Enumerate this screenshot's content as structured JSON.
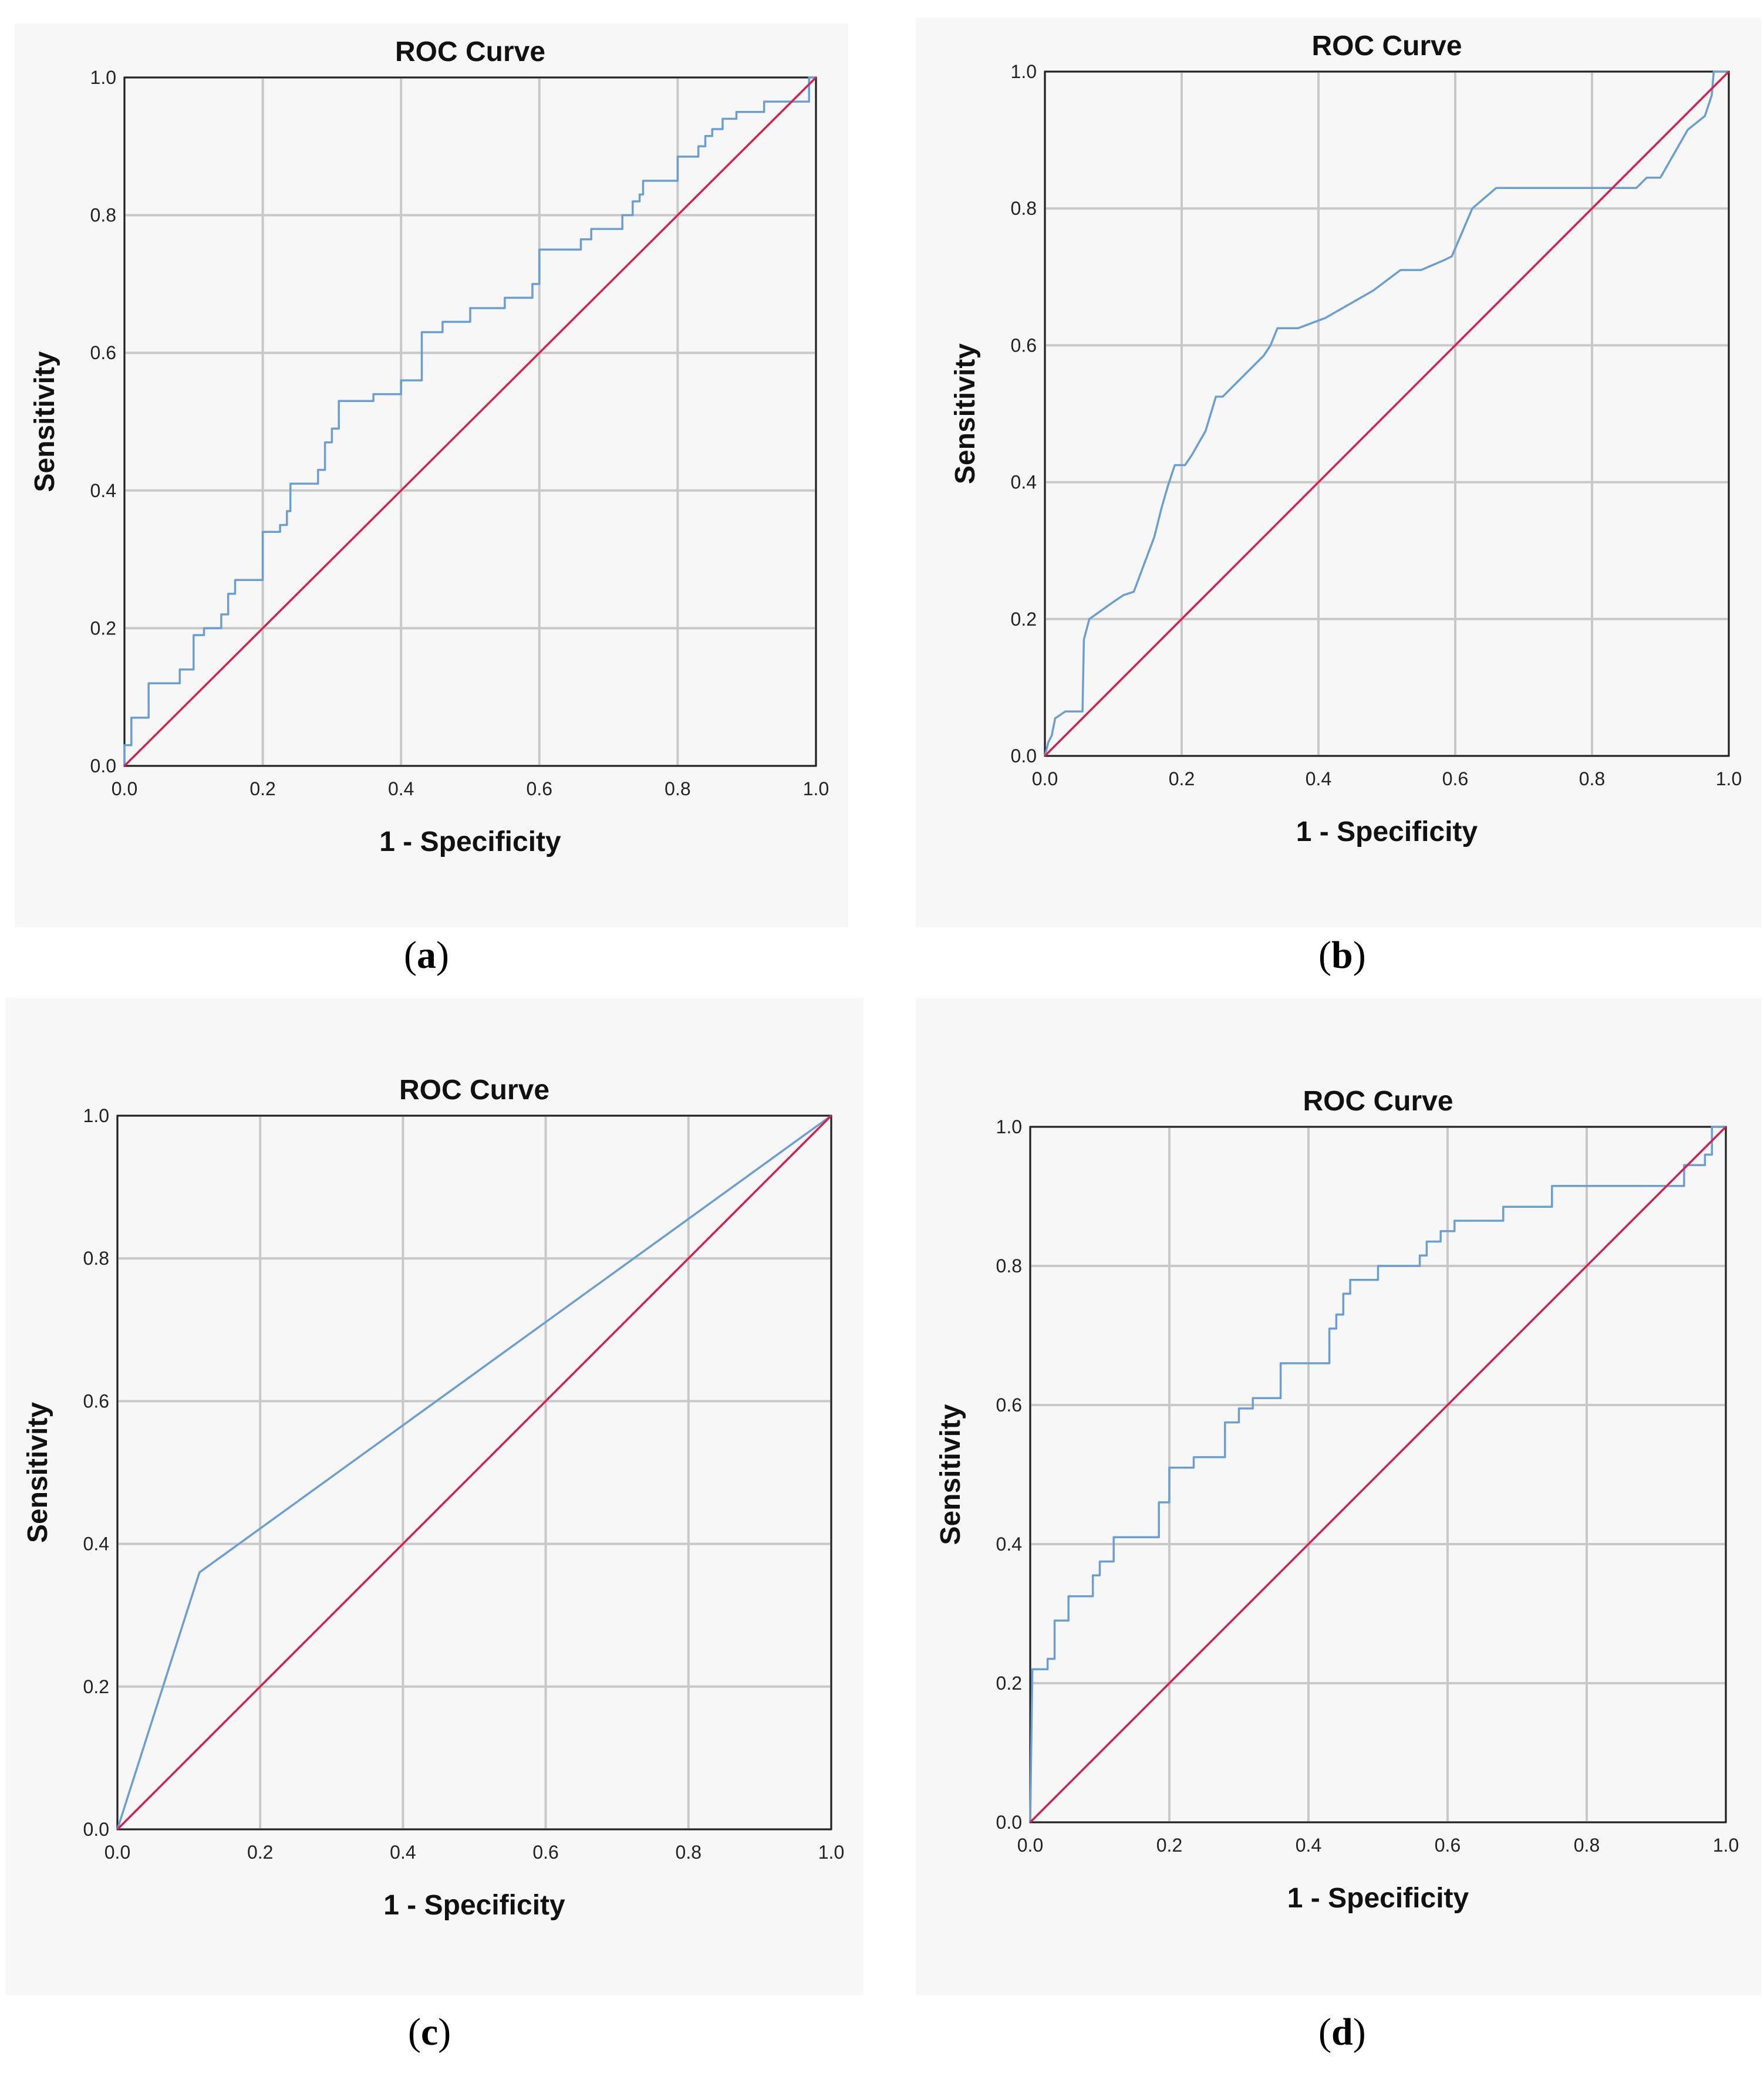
{
  "panels": [
    {
      "label_open": "(",
      "label_letter": "a",
      "label_close": ")"
    },
    {
      "label_open": "(",
      "label_letter": "b",
      "label_close": ")"
    },
    {
      "label_open": "(",
      "label_letter": "c",
      "label_close": ")"
    },
    {
      "label_open": "(",
      "label_letter": "d",
      "label_close": ")"
    }
  ],
  "chart_data": [
    {
      "type": "line",
      "title": "ROC Curve",
      "xlabel": "1 - Specificity",
      "ylabel": "Sensitivity",
      "xlim": [
        0,
        1
      ],
      "ylim": [
        0,
        1
      ],
      "xticks": [
        "0.0",
        "0.2",
        "0.4",
        "0.6",
        "0.8",
        "1.0"
      ],
      "yticks": [
        "0.0",
        "0.2",
        "0.4",
        "0.6",
        "0.8",
        "1.0"
      ],
      "grid": true,
      "colors": {
        "curve": "#6b9ed2",
        "reference": "#d6214c"
      },
      "series": [
        {
          "name": "ROC",
          "points": [
            [
              0,
              0
            ],
            [
              0,
              0.03
            ],
            [
              0.01,
              0.03
            ],
            [
              0.01,
              0.07
            ],
            [
              0.035,
              0.07
            ],
            [
              0.035,
              0.12
            ],
            [
              0.08,
              0.12
            ],
            [
              0.08,
              0.14
            ],
            [
              0.1,
              0.14
            ],
            [
              0.1,
              0.19
            ],
            [
              0.115,
              0.19
            ],
            [
              0.115,
              0.2
            ],
            [
              0.14,
              0.2
            ],
            [
              0.14,
              0.22
            ],
            [
              0.15,
              0.22
            ],
            [
              0.15,
              0.25
            ],
            [
              0.16,
              0.25
            ],
            [
              0.16,
              0.27
            ],
            [
              0.2,
              0.27
            ],
            [
              0.2,
              0.34
            ],
            [
              0.225,
              0.34
            ],
            [
              0.225,
              0.35
            ],
            [
              0.235,
              0.35
            ],
            [
              0.235,
              0.37
            ],
            [
              0.24,
              0.37
            ],
            [
              0.24,
              0.41
            ],
            [
              0.28,
              0.41
            ],
            [
              0.28,
              0.43
            ],
            [
              0.29,
              0.43
            ],
            [
              0.29,
              0.47
            ],
            [
              0.3,
              0.47
            ],
            [
              0.3,
              0.49
            ],
            [
              0.31,
              0.49
            ],
            [
              0.31,
              0.53
            ],
            [
              0.36,
              0.53
            ],
            [
              0.36,
              0.54
            ],
            [
              0.4,
              0.54
            ],
            [
              0.4,
              0.56
            ],
            [
              0.43,
              0.56
            ],
            [
              0.43,
              0.63
            ],
            [
              0.46,
              0.63
            ],
            [
              0.46,
              0.645
            ],
            [
              0.5,
              0.645
            ],
            [
              0.5,
              0.665
            ],
            [
              0.55,
              0.665
            ],
            [
              0.55,
              0.68
            ],
            [
              0.59,
              0.68
            ],
            [
              0.59,
              0.7
            ],
            [
              0.6,
              0.7
            ],
            [
              0.6,
              0.75
            ],
            [
              0.66,
              0.75
            ],
            [
              0.66,
              0.765
            ],
            [
              0.675,
              0.765
            ],
            [
              0.675,
              0.78
            ],
            [
              0.72,
              0.78
            ],
            [
              0.72,
              0.8
            ],
            [
              0.735,
              0.8
            ],
            [
              0.735,
              0.82
            ],
            [
              0.745,
              0.82
            ],
            [
              0.745,
              0.83
            ],
            [
              0.75,
              0.83
            ],
            [
              0.75,
              0.85
            ],
            [
              0.8,
              0.85
            ],
            [
              0.8,
              0.885
            ],
            [
              0.83,
              0.885
            ],
            [
              0.83,
              0.9
            ],
            [
              0.84,
              0.9
            ],
            [
              0.84,
              0.915
            ],
            [
              0.85,
              0.915
            ],
            [
              0.85,
              0.925
            ],
            [
              0.865,
              0.925
            ],
            [
              0.865,
              0.94
            ],
            [
              0.885,
              0.94
            ],
            [
              0.885,
              0.95
            ],
            [
              0.925,
              0.95
            ],
            [
              0.925,
              0.965
            ],
            [
              0.99,
              0.965
            ],
            [
              0.99,
              1.0
            ],
            [
              1,
              1
            ]
          ]
        },
        {
          "name": "Reference Line",
          "points": [
            [
              0,
              0
            ],
            [
              1,
              1
            ]
          ]
        }
      ]
    },
    {
      "type": "line",
      "title": "ROC Curve",
      "xlabel": "1 - Specificity",
      "ylabel": "Sensitivity",
      "xlim": [
        0,
        1
      ],
      "ylim": [
        0,
        1
      ],
      "xticks": [
        "0.0",
        "0.2",
        "0.4",
        "0.6",
        "0.8",
        "1.0"
      ],
      "yticks": [
        "0.0",
        "0.2",
        "0.4",
        "0.6",
        "0.8",
        "1.0"
      ],
      "grid": true,
      "colors": {
        "curve": "#6b9ed2",
        "reference": "#d6214c"
      },
      "series": [
        {
          "name": "ROC",
          "points": [
            [
              0,
              0
            ],
            [
              0.005,
              0.02
            ],
            [
              0.01,
              0.03
            ],
            [
              0.015,
              0.055
            ],
            [
              0.03,
              0.065
            ],
            [
              0.055,
              0.065
            ],
            [
              0.057,
              0.17
            ],
            [
              0.065,
              0.2
            ],
            [
              0.1,
              0.225
            ],
            [
              0.115,
              0.235
            ],
            [
              0.13,
              0.24
            ],
            [
              0.145,
              0.28
            ],
            [
              0.16,
              0.32
            ],
            [
              0.17,
              0.36
            ],
            [
              0.18,
              0.395
            ],
            [
              0.19,
              0.425
            ],
            [
              0.205,
              0.425
            ],
            [
              0.215,
              0.44
            ],
            [
              0.235,
              0.475
            ],
            [
              0.25,
              0.525
            ],
            [
              0.26,
              0.525
            ],
            [
              0.28,
              0.545
            ],
            [
              0.32,
              0.585
            ],
            [
              0.33,
              0.6
            ],
            [
              0.34,
              0.625
            ],
            [
              0.37,
              0.625
            ],
            [
              0.41,
              0.64
            ],
            [
              0.48,
              0.68
            ],
            [
              0.52,
              0.71
            ],
            [
              0.55,
              0.71
            ],
            [
              0.585,
              0.725
            ],
            [
              0.595,
              0.73
            ],
            [
              0.61,
              0.765
            ],
            [
              0.625,
              0.8
            ],
            [
              0.66,
              0.83
            ],
            [
              0.78,
              0.83
            ],
            [
              0.865,
              0.83
            ],
            [
              0.88,
              0.845
            ],
            [
              0.9,
              0.845
            ],
            [
              0.94,
              0.915
            ],
            [
              0.965,
              0.935
            ],
            [
              0.975,
              0.965
            ],
            [
              0.978,
              1.0
            ],
            [
              1,
              1
            ]
          ]
        },
        {
          "name": "Reference Line",
          "points": [
            [
              0,
              0
            ],
            [
              1,
              1
            ]
          ]
        }
      ]
    },
    {
      "type": "line",
      "title": "ROC Curve",
      "xlabel": "1 - Specificity",
      "ylabel": "Sensitivity",
      "xlim": [
        0,
        1
      ],
      "ylim": [
        0,
        1
      ],
      "xticks": [
        "0.0",
        "0.2",
        "0.4",
        "0.6",
        "0.8",
        "1.0"
      ],
      "yticks": [
        "0.0",
        "0.2",
        "0.4",
        "0.6",
        "0.8",
        "1.0"
      ],
      "grid": true,
      "colors": {
        "curve": "#6b9ed2",
        "reference": "#d6214c"
      },
      "series": [
        {
          "name": "ROC",
          "points": [
            [
              0,
              0
            ],
            [
              0.115,
              0.36
            ],
            [
              1,
              1
            ]
          ]
        },
        {
          "name": "Reference Line",
          "points": [
            [
              0,
              0
            ],
            [
              1,
              1
            ]
          ]
        }
      ]
    },
    {
      "type": "line",
      "title": "ROC Curve",
      "xlabel": "1 - Specificity",
      "ylabel": "Sensitivity",
      "xlim": [
        0,
        1
      ],
      "ylim": [
        0,
        1
      ],
      "xticks": [
        "0.0",
        "0.2",
        "0.4",
        "0.6",
        "0.8",
        "1.0"
      ],
      "yticks": [
        "0.0",
        "0.2",
        "0.4",
        "0.6",
        "0.8",
        "1.0"
      ],
      "grid": true,
      "colors": {
        "curve": "#6b9ed2",
        "reference": "#d6214c"
      },
      "series": [
        {
          "name": "ROC",
          "points": [
            [
              0,
              0
            ],
            [
              0.003,
              0.22
            ],
            [
              0.025,
              0.22
            ],
            [
              0.025,
              0.235
            ],
            [
              0.035,
              0.235
            ],
            [
              0.035,
              0.29
            ],
            [
              0.055,
              0.29
            ],
            [
              0.055,
              0.325
            ],
            [
              0.09,
              0.325
            ],
            [
              0.09,
              0.355
            ],
            [
              0.1,
              0.355
            ],
            [
              0.1,
              0.375
            ],
            [
              0.12,
              0.375
            ],
            [
              0.12,
              0.41
            ],
            [
              0.185,
              0.41
            ],
            [
              0.185,
              0.46
            ],
            [
              0.2,
              0.46
            ],
            [
              0.2,
              0.51
            ],
            [
              0.235,
              0.51
            ],
            [
              0.235,
              0.525
            ],
            [
              0.28,
              0.525
            ],
            [
              0.28,
              0.575
            ],
            [
              0.3,
              0.575
            ],
            [
              0.3,
              0.595
            ],
            [
              0.32,
              0.595
            ],
            [
              0.32,
              0.61
            ],
            [
              0.36,
              0.61
            ],
            [
              0.36,
              0.66
            ],
            [
              0.43,
              0.66
            ],
            [
              0.43,
              0.71
            ],
            [
              0.44,
              0.71
            ],
            [
              0.44,
              0.73
            ],
            [
              0.45,
              0.73
            ],
            [
              0.45,
              0.76
            ],
            [
              0.46,
              0.76
            ],
            [
              0.46,
              0.78
            ],
            [
              0.5,
              0.78
            ],
            [
              0.5,
              0.8
            ],
            [
              0.56,
              0.8
            ],
            [
              0.56,
              0.815
            ],
            [
              0.57,
              0.815
            ],
            [
              0.57,
              0.835
            ],
            [
              0.59,
              0.835
            ],
            [
              0.59,
              0.85
            ],
            [
              0.61,
              0.85
            ],
            [
              0.61,
              0.865
            ],
            [
              0.68,
              0.865
            ],
            [
              0.68,
              0.885
            ],
            [
              0.75,
              0.885
            ],
            [
              0.75,
              0.915
            ],
            [
              0.94,
              0.915
            ],
            [
              0.94,
              0.945
            ],
            [
              0.97,
              0.945
            ],
            [
              0.97,
              0.96
            ],
            [
              0.98,
              0.96
            ],
            [
              0.98,
              1.0
            ],
            [
              1,
              1
            ]
          ]
        },
        {
          "name": "Reference Line",
          "points": [
            [
              0,
              0
            ],
            [
              1,
              1
            ]
          ]
        }
      ]
    }
  ]
}
